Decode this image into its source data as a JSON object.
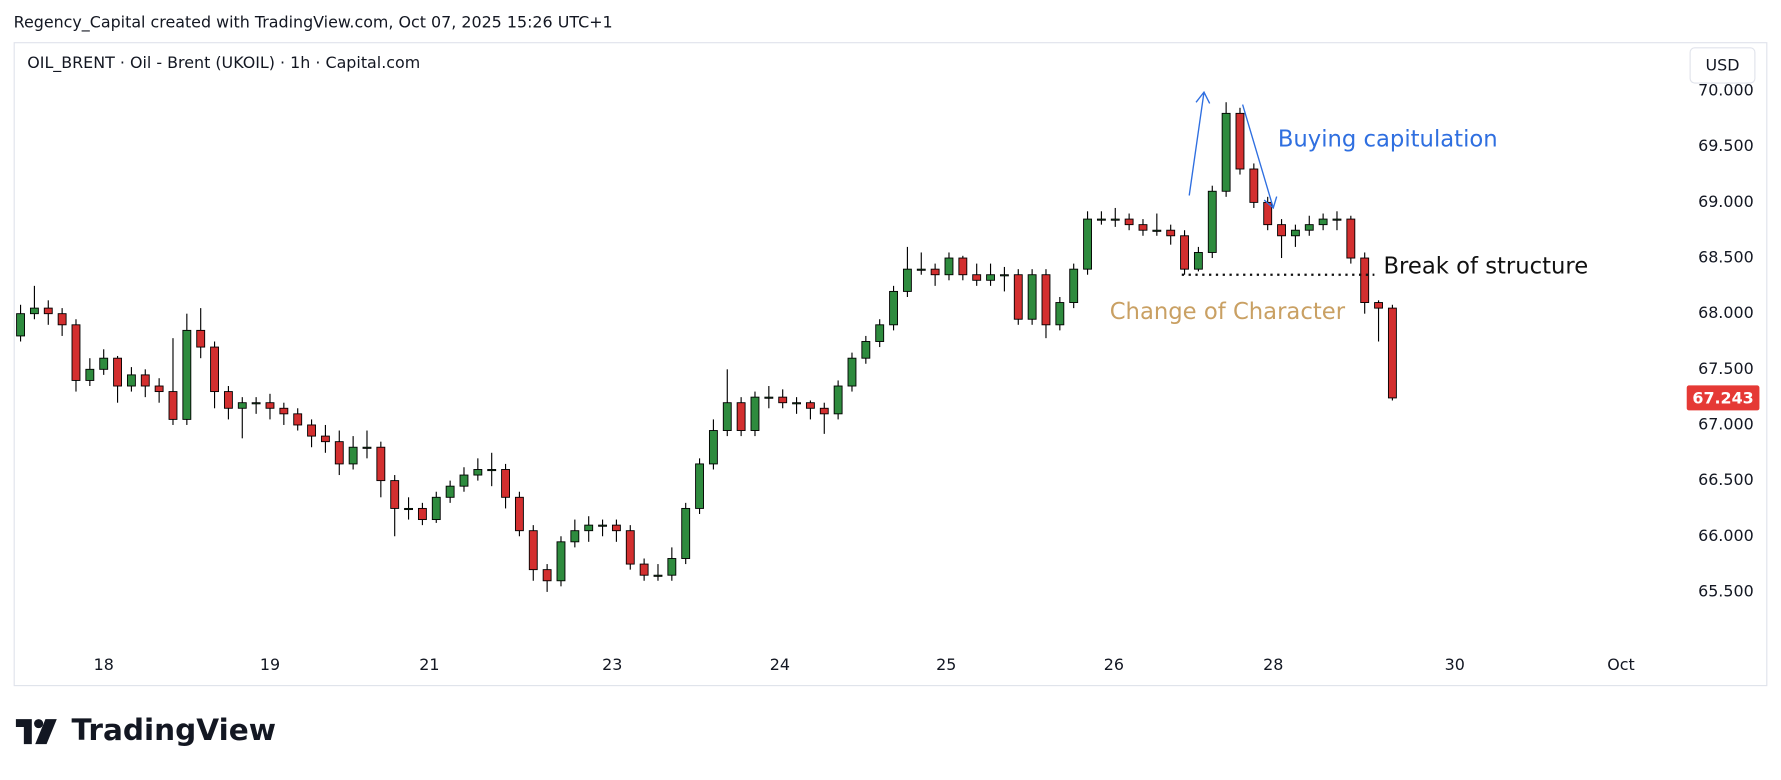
{
  "header": {
    "caption": "Regency_Capital created with TradingView.com, Oct 07, 2025 15:26 UTC+1"
  },
  "chart_data": {
    "type": "candlestick",
    "title": "OIL_BRENT · Oil - Brent (UKOIL) · 1h · Capital.com",
    "currency": "USD",
    "up_color": "#2e8b3e",
    "down_color": "#d32f2f",
    "x": [
      0,
      1,
      2,
      3,
      4,
      5,
      6,
      7,
      8,
      9,
      10,
      11,
      12,
      13,
      14,
      15,
      16,
      17,
      18,
      19,
      20,
      21,
      22,
      23,
      24,
      25,
      26,
      27,
      28,
      29,
      30,
      31,
      32,
      33,
      34,
      35,
      36,
      37,
      38,
      39,
      40,
      41,
      42,
      43,
      44,
      45,
      46,
      47,
      48,
      49,
      50,
      51,
      52,
      53,
      54,
      55,
      56,
      57,
      58,
      59,
      60,
      61,
      62,
      63,
      64,
      65,
      66,
      67,
      68,
      69,
      70,
      71,
      72,
      73,
      74,
      75,
      76,
      77,
      78,
      79,
      80,
      81,
      82,
      83,
      84,
      85,
      86,
      87,
      88,
      89,
      90,
      91,
      92,
      93,
      94,
      95,
      96,
      97,
      98,
      99
    ],
    "ohlc": [
      [
        67.8,
        68.08,
        67.75,
        68.0
      ],
      [
        68.0,
        68.25,
        67.95,
        68.05
      ],
      [
        68.05,
        68.12,
        67.9,
        68.0
      ],
      [
        68.0,
        68.05,
        67.8,
        67.9
      ],
      [
        67.9,
        67.95,
        67.3,
        67.4
      ],
      [
        67.4,
        67.6,
        67.35,
        67.5
      ],
      [
        67.5,
        67.68,
        67.45,
        67.6
      ],
      [
        67.6,
        67.62,
        67.2,
        67.35
      ],
      [
        67.35,
        67.52,
        67.3,
        67.45
      ],
      [
        67.45,
        67.5,
        67.25,
        67.35
      ],
      [
        67.35,
        67.42,
        67.2,
        67.3
      ],
      [
        67.3,
        67.78,
        67.0,
        67.05
      ],
      [
        67.05,
        68.0,
        67.0,
        67.85
      ],
      [
        67.85,
        68.05,
        67.6,
        67.7
      ],
      [
        67.7,
        67.75,
        67.15,
        67.3
      ],
      [
        67.3,
        67.35,
        67.05,
        67.15
      ],
      [
        67.15,
        67.25,
        66.88,
        67.2
      ],
      [
        67.2,
        67.25,
        67.1,
        67.2
      ],
      [
        67.2,
        67.28,
        67.05,
        67.15
      ],
      [
        67.15,
        67.2,
        67.0,
        67.1
      ],
      [
        67.1,
        67.15,
        66.95,
        67.0
      ],
      [
        67.0,
        67.05,
        66.8,
        66.9
      ],
      [
        66.9,
        67.0,
        66.75,
        66.85
      ],
      [
        66.85,
        66.95,
        66.55,
        66.65
      ],
      [
        66.65,
        66.9,
        66.6,
        66.8
      ],
      [
        66.8,
        66.95,
        66.7,
        66.8
      ],
      [
        66.8,
        66.85,
        66.35,
        66.5
      ],
      [
        66.5,
        66.55,
        66.0,
        66.25
      ],
      [
        66.25,
        66.35,
        66.15,
        66.25
      ],
      [
        66.25,
        66.3,
        66.1,
        66.15
      ],
      [
        66.15,
        66.4,
        66.12,
        66.35
      ],
      [
        66.35,
        66.5,
        66.3,
        66.45
      ],
      [
        66.45,
        66.62,
        66.4,
        66.55
      ],
      [
        66.55,
        66.7,
        66.5,
        66.6
      ],
      [
        66.6,
        66.75,
        66.45,
        66.6
      ],
      [
        66.6,
        66.65,
        66.25,
        66.35
      ],
      [
        66.35,
        66.4,
        66.0,
        66.05
      ],
      [
        66.05,
        66.1,
        65.6,
        65.7
      ],
      [
        65.7,
        65.75,
        65.5,
        65.6
      ],
      [
        65.6,
        66.0,
        65.55,
        65.95
      ],
      [
        65.95,
        66.15,
        65.9,
        66.05
      ],
      [
        66.05,
        66.18,
        65.95,
        66.1
      ],
      [
        66.1,
        66.15,
        66.0,
        66.1
      ],
      [
        66.1,
        66.15,
        65.95,
        66.05
      ],
      [
        66.05,
        66.1,
        65.7,
        65.75
      ],
      [
        65.75,
        65.8,
        65.6,
        65.65
      ],
      [
        65.65,
        65.75,
        65.6,
        65.65
      ],
      [
        65.65,
        65.9,
        65.6,
        65.8
      ],
      [
        65.8,
        66.3,
        65.75,
        66.25
      ],
      [
        66.25,
        66.7,
        66.2,
        66.65
      ],
      [
        66.65,
        67.05,
        66.6,
        66.95
      ],
      [
        66.95,
        67.5,
        66.9,
        67.2
      ],
      [
        67.2,
        67.25,
        66.9,
        66.95
      ],
      [
        66.95,
        67.3,
        66.9,
        67.25
      ],
      [
        67.25,
        67.35,
        67.15,
        67.25
      ],
      [
        67.25,
        67.32,
        67.15,
        67.2
      ],
      [
        67.2,
        67.25,
        67.1,
        67.2
      ],
      [
        67.2,
        67.22,
        67.05,
        67.15
      ],
      [
        67.15,
        67.2,
        66.92,
        67.1
      ],
      [
        67.1,
        67.4,
        67.05,
        67.35
      ],
      [
        67.35,
        67.65,
        67.3,
        67.6
      ],
      [
        67.6,
        67.8,
        67.55,
        67.75
      ],
      [
        67.75,
        67.95,
        67.7,
        67.9
      ],
      [
        67.9,
        68.25,
        67.85,
        68.2
      ],
      [
        68.2,
        68.6,
        68.15,
        68.4
      ],
      [
        68.4,
        68.55,
        68.35,
        68.4
      ],
      [
        68.4,
        68.45,
        68.25,
        68.35
      ],
      [
        68.35,
        68.55,
        68.3,
        68.5
      ],
      [
        68.5,
        68.52,
        68.3,
        68.35
      ],
      [
        68.35,
        68.45,
        68.25,
        68.3
      ],
      [
        68.3,
        68.45,
        68.25,
        68.35
      ],
      [
        68.35,
        68.42,
        68.2,
        68.35
      ],
      [
        68.35,
        68.4,
        67.9,
        67.95
      ],
      [
        67.95,
        68.4,
        67.9,
        68.35
      ],
      [
        68.35,
        68.4,
        67.78,
        67.9
      ],
      [
        67.9,
        68.15,
        67.85,
        68.1
      ],
      [
        68.1,
        68.45,
        68.05,
        68.4
      ],
      [
        68.4,
        68.92,
        68.35,
        68.85
      ],
      [
        68.85,
        68.92,
        68.8,
        68.85
      ],
      [
        68.85,
        68.95,
        68.78,
        68.85
      ],
      [
        68.85,
        68.9,
        68.75,
        68.8
      ],
      [
        68.8,
        68.85,
        68.7,
        68.75
      ],
      [
        68.75,
        68.9,
        68.7,
        68.75
      ],
      [
        68.75,
        68.8,
        68.62,
        68.7
      ],
      [
        68.7,
        68.75,
        68.35,
        68.4
      ],
      [
        68.4,
        68.6,
        68.38,
        68.55
      ],
      [
        68.55,
        69.15,
        68.5,
        69.1
      ],
      [
        69.1,
        69.9,
        69.05,
        69.8
      ],
      [
        69.8,
        69.85,
        69.25,
        69.3
      ],
      [
        69.3,
        69.35,
        68.95,
        69.0
      ],
      [
        69.0,
        69.05,
        68.75,
        68.8
      ],
      [
        68.8,
        68.85,
        68.5,
        68.7
      ],
      [
        68.7,
        68.8,
        68.6,
        68.75
      ],
      [
        68.75,
        68.88,
        68.7,
        68.8
      ],
      [
        68.8,
        68.9,
        68.75,
        68.85
      ],
      [
        68.85,
        68.92,
        68.75,
        68.85
      ],
      [
        68.85,
        68.88,
        68.45,
        68.5
      ],
      [
        68.5,
        68.55,
        68.0,
        68.1
      ],
      [
        68.1,
        68.12,
        67.75,
        68.05
      ],
      [
        68.05,
        68.08,
        67.22,
        67.243
      ]
    ],
    "last_price": 67.243,
    "last_price_color": "#e53935",
    "xlim": [
      -0.5,
      119.42
    ],
    "xticks": [
      {
        "value": 6,
        "label": "18"
      },
      {
        "value": 18,
        "label": "19"
      },
      {
        "value": 29.5,
        "label": "21"
      },
      {
        "value": 42.7,
        "label": "23"
      },
      {
        "value": 54.8,
        "label": "24"
      },
      {
        "value": 66.8,
        "label": "25"
      },
      {
        "value": 78.9,
        "label": "26"
      },
      {
        "value": 90.4,
        "label": "28"
      },
      {
        "value": 103.5,
        "label": "30"
      },
      {
        "value": 115.5,
        "label": "Oct"
      }
    ],
    "ylim": [
      65.0,
      70.44
    ],
    "yticks": [
      {
        "value": 65.5,
        "label": "65.500"
      },
      {
        "value": 66,
        "label": "66.000"
      },
      {
        "value": 66.5,
        "label": "66.500"
      },
      {
        "value": 67,
        "label": "67.000"
      },
      {
        "value": 67.5,
        "label": "67.500"
      },
      {
        "value": 68,
        "label": "68.000"
      },
      {
        "value": 68.5,
        "label": "68.500"
      },
      {
        "value": 69,
        "label": "69.000"
      },
      {
        "value": 69.5,
        "label": "69.500"
      },
      {
        "value": 70,
        "label": "70.000"
      }
    ],
    "bos_line": {
      "y": 68.35,
      "x0": 83.8,
      "x1": 97.7
    },
    "annotations": [
      {
        "text": "Buying capitulation",
        "color": "#2f6fe0"
      },
      {
        "text": "Break of structure",
        "color": "#111111"
      },
      {
        "text": "Change of Character",
        "color": "#c9a063"
      }
    ]
  },
  "footer": {
    "brand": "TradingView"
  }
}
